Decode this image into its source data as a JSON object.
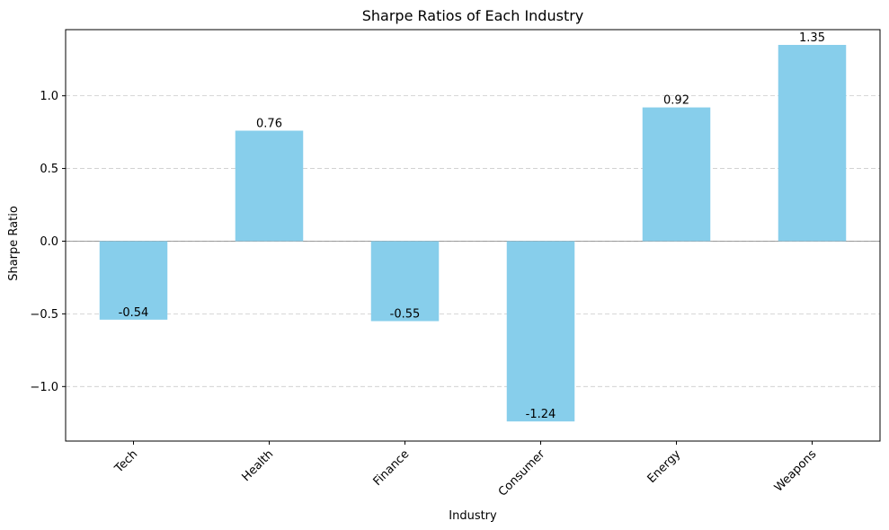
{
  "chart_data": {
    "type": "bar",
    "title": "Sharpe Ratios of Each Industry",
    "xlabel": "Industry",
    "ylabel": "Sharpe Ratio",
    "categories": [
      "Tech",
      "Health",
      "Finance",
      "Consumer",
      "Energy",
      "Weapons"
    ],
    "values": [
      -0.54,
      0.76,
      -0.55,
      -1.24,
      0.92,
      1.35
    ],
    "data_labels": [
      "-0.54",
      "0.76",
      "-0.55",
      "-1.24",
      "0.92",
      "1.35"
    ],
    "ylim": [
      -1.375,
      1.455
    ],
    "yticks": [
      -1.0,
      -0.5,
      0.0,
      0.5,
      1.0
    ],
    "ytick_labels": [
      "−1.0",
      "−0.5",
      "0.0",
      "0.5",
      "1.0"
    ],
    "grid": "y-axis dashed",
    "legend": "none",
    "bar_color": "#87ceeb",
    "zero_line": true
  }
}
